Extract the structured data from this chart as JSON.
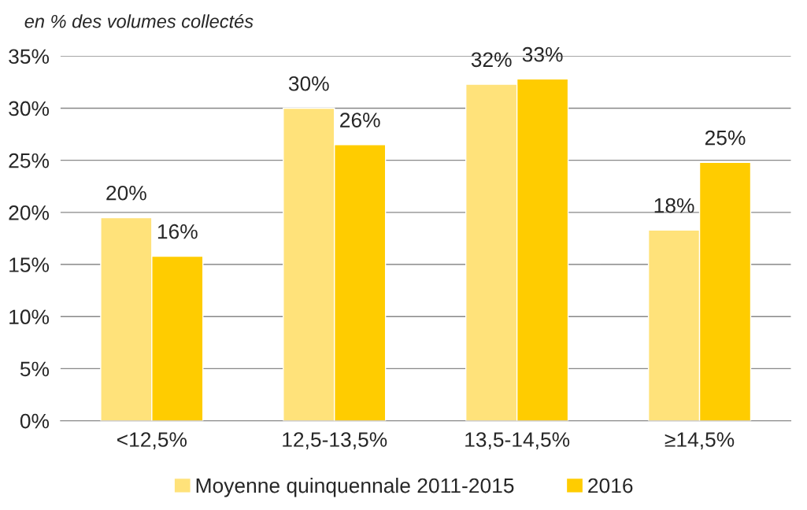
{
  "chart_data": {
    "type": "bar",
    "subtitle": "en % des volumes collectés",
    "categories": [
      "<12,5%",
      "12,5-13,5%",
      "13,5-14,5%",
      "≥14,5%"
    ],
    "series": [
      {
        "name": "Moyenne quinquennale 2011-2015",
        "color": "#ffe27a",
        "values": [
          19.5,
          30.0,
          32.3,
          18.3
        ],
        "value_labels": [
          "20%",
          "30%",
          "32%",
          "18%"
        ]
      },
      {
        "name": "2016",
        "color": "#ffcc00",
        "values": [
          15.8,
          26.5,
          32.8,
          24.8
        ],
        "value_labels": [
          "16%",
          "26%",
          "33%",
          "25%"
        ]
      }
    ],
    "ylim": [
      0,
      35
    ],
    "yticks": [
      {
        "value": 0,
        "label": "0%"
      },
      {
        "value": 5,
        "label": "5%"
      },
      {
        "value": 10,
        "label": "10%"
      },
      {
        "value": 15,
        "label": "15%"
      },
      {
        "value": 20,
        "label": "20%"
      },
      {
        "value": 25,
        "label": "25%"
      },
      {
        "value": 30,
        "label": "30%"
      },
      {
        "value": 35,
        "label": "35%"
      }
    ],
    "grid": "y",
    "legend": "bottom"
  }
}
